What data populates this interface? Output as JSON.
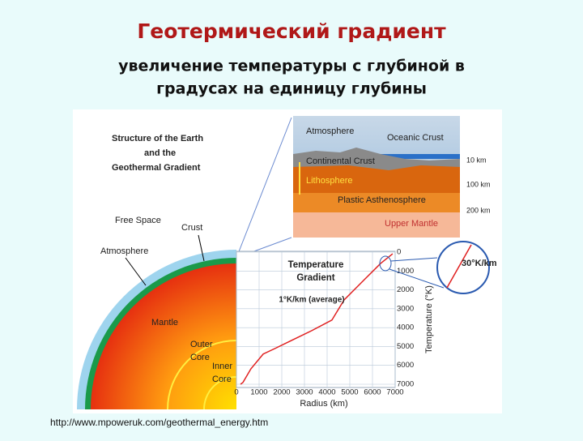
{
  "header": {
    "title": "Геотермический градиент",
    "subtitle": [
      "увеличение температуры с глубиной в",
      "градусах на единицу глубины"
    ]
  },
  "figure": {
    "heading": [
      "Structure of the Earth",
      "and the",
      "Geothermal Gradient"
    ],
    "earth_labels": {
      "free_space": "Free Space",
      "crust": "Crust",
      "atmosphere": "Atmosphere",
      "mantle": "Mantle",
      "outer_core": [
        "Outer",
        "Core"
      ],
      "inner_core": [
        "Inner",
        "Core"
      ]
    },
    "inset": {
      "atmosphere": "Atmosphere",
      "oceanic_crust": "Oceanic Crust",
      "continental_crust": "Continental Crust",
      "lithosphere": "Lithosphere",
      "asthenosphere": "Plastic Asthenosphere",
      "upper_mantle": "Upper Mantle",
      "depths": [
        "10 km",
        "100 km",
        "200 km"
      ]
    }
  },
  "chart_data": {
    "type": "line",
    "title": [
      "Temperature",
      "Gradient"
    ],
    "annotations": [
      "1°K/km (average)",
      "30°K/km"
    ],
    "xlabel": "Radius (km)",
    "ylabel": "Temperature (°K)",
    "x": [
      180,
      290,
      640,
      1180,
      1710,
      2430,
      3320,
      4210,
      4750,
      5640,
      6360,
      6890
    ],
    "series": [
      {
        "color": "#e02020",
        "values": [
          7000,
          6900,
          6180,
          5400,
          5100,
          4680,
          4160,
          3600,
          2530,
          1460,
          600,
          90
        ]
      }
    ],
    "xlim": [
      0,
      7000
    ],
    "xticks": [
      0,
      1000,
      2000,
      3000,
      4000,
      5000,
      6000,
      7000
    ],
    "ylim": [
      0,
      7000
    ],
    "yticks": [
      0,
      1000,
      2000,
      3000,
      4000,
      5000,
      6000,
      7000
    ],
    "y_inverted": true,
    "grid": true
  },
  "source": "http://www.mpoweruk.com/geothermal_energy.htm"
}
